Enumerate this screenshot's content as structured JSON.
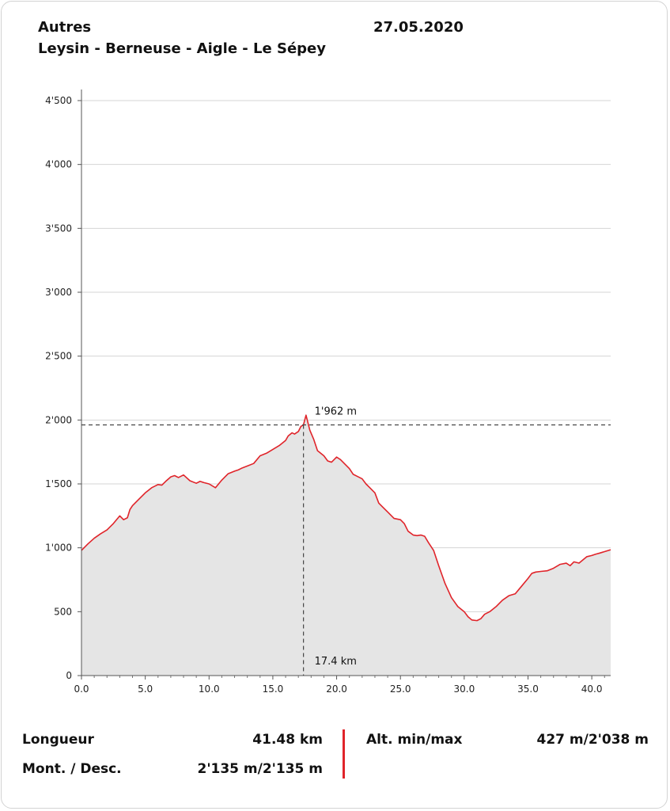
{
  "header": {
    "category": "Autres",
    "route": "Leysin - Berneuse - Aigle - Le Sépey",
    "date": "27.05.2020"
  },
  "chart_data": {
    "type": "area",
    "xlim": [
      0,
      41.48
    ],
    "ylim": [
      0,
      4500
    ],
    "x_ticks": [
      0,
      5,
      10,
      15,
      20,
      25,
      30,
      35,
      40
    ],
    "x_tick_labels": [
      "0.0",
      "5.0",
      "10.0",
      "15.0",
      "20.0",
      "25.0",
      "30.0",
      "35.0",
      "40.0"
    ],
    "y_ticks": [
      0,
      500,
      1000,
      1500,
      2000,
      2500,
      3000,
      3500,
      4000,
      4500
    ],
    "y_tick_labels": [
      "0",
      "500",
      "1'000",
      "1'500",
      "2'000",
      "2'500",
      "3'000",
      "3'500",
      "4'000",
      "4'500"
    ],
    "grid": true,
    "line_color": "#e0242a",
    "fill_color": "#e5e5e5",
    "marker": {
      "x": 17.4,
      "y": 1962,
      "x_label": "17.4 km",
      "y_label": "1'962 m"
    },
    "series": [
      {
        "x": [
          0,
          0.5,
          1,
          1.5,
          2,
          2.5,
          3,
          3.3,
          3.6,
          3.8,
          4,
          4.5,
          5,
          5.5,
          6,
          6.3,
          6.6,
          7,
          7.3,
          7.6,
          8,
          8.5,
          9,
          9.3,
          9.6,
          10,
          10.5,
          11,
          11.5,
          12,
          12.3,
          12.6,
          13,
          13.5,
          14,
          14.5,
          15,
          15.5,
          16,
          16.2,
          16.5,
          16.7,
          17,
          17.2,
          17.4,
          17.6,
          17.9,
          18.2,
          18.5,
          19,
          19.3,
          19.6,
          20,
          20.3,
          20.6,
          21,
          21.3,
          21.6,
          22,
          22.3,
          22.6,
          23,
          23.3,
          23.6,
          24,
          24.5,
          25,
          25.3,
          25.6,
          26,
          26.3,
          26.6,
          26.9,
          27.2,
          27.6,
          28,
          28.5,
          29,
          29.5,
          30,
          30.3,
          30.6,
          31,
          31.3,
          31.6,
          32,
          32.5,
          33,
          33.5,
          34,
          34.5,
          35,
          35.3,
          35.6,
          36,
          36.5,
          37,
          37.5,
          38,
          38.3,
          38.6,
          39,
          39.3,
          39.6,
          40,
          40.3,
          40.6,
          41,
          41.48
        ],
        "y": [
          980,
          1030,
          1075,
          1110,
          1140,
          1190,
          1250,
          1220,
          1235,
          1300,
          1330,
          1380,
          1430,
          1470,
          1495,
          1490,
          1520,
          1555,
          1565,
          1550,
          1570,
          1525,
          1505,
          1520,
          1510,
          1500,
          1470,
          1530,
          1580,
          1600,
          1610,
          1625,
          1640,
          1660,
          1720,
          1740,
          1770,
          1800,
          1840,
          1875,
          1900,
          1890,
          1910,
          1950,
          1962,
          2038,
          1920,
          1850,
          1760,
          1720,
          1680,
          1670,
          1710,
          1690,
          1660,
          1620,
          1575,
          1560,
          1540,
          1500,
          1470,
          1430,
          1350,
          1320,
          1280,
          1230,
          1220,
          1190,
          1130,
          1100,
          1095,
          1100,
          1090,
          1040,
          980,
          860,
          720,
          610,
          540,
          500,
          460,
          435,
          430,
          445,
          480,
          500,
          540,
          590,
          625,
          640,
          700,
          760,
          800,
          810,
          815,
          820,
          840,
          870,
          880,
          860,
          890,
          880,
          905,
          930,
          940,
          950,
          958,
          970,
          985
        ]
      }
    ]
  },
  "stats": {
    "length_label": "Longueur",
    "length_value": "41.48 km",
    "updown_label": "Mont. / Desc.",
    "updown_value": "2'135 m/2'135 m",
    "alt_label": "Alt. min/max",
    "alt_value": "427 m/2'038 m"
  }
}
